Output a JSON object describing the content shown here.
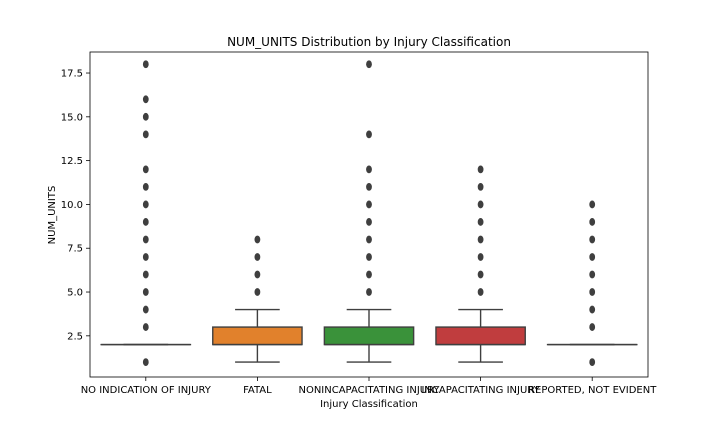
{
  "chart_data": {
    "type": "box",
    "title": "NUM_UNITS Distribution by Injury Classification",
    "xlabel": "Injury Classification",
    "ylabel": "NUM_UNITS",
    "ylim": [
      0.15,
      18.7
    ],
    "yticks": [
      2.5,
      5.0,
      7.5,
      10.0,
      12.5,
      15.0,
      17.5
    ],
    "ytick_labels": [
      "2.5",
      "5.0",
      "7.5",
      "10.0",
      "12.5",
      "15.0",
      "17.5"
    ],
    "grid": false,
    "categories": [
      "NO INDICATION OF INJURY",
      "FATAL",
      "NONINCAPACITATING INJURY",
      "INCAPACITATING INJURY",
      "REPORTED, NOT EVIDENT"
    ],
    "boxes": [
      {
        "category": "NO INDICATION OF INJURY",
        "color": "#3a75b0",
        "whisker_low": 2,
        "q1": 2,
        "median": 2,
        "q3": 2,
        "whisker_high": 2,
        "outliers": [
          1,
          3,
          4,
          5,
          6,
          7,
          8,
          9,
          10,
          11,
          12,
          14,
          15,
          16,
          18
        ]
      },
      {
        "category": "FATAL",
        "color": "#e1812c",
        "whisker_low": 1,
        "q1": 2,
        "median": 2,
        "q3": 3,
        "whisker_high": 4,
        "outliers": [
          5,
          6,
          7,
          8
        ]
      },
      {
        "category": "NONINCAPACITATING INJURY",
        "color": "#3a923a",
        "whisker_low": 1,
        "q1": 2,
        "median": 2,
        "q3": 3,
        "whisker_high": 4,
        "outliers": [
          5,
          6,
          7,
          8,
          9,
          10,
          11,
          12,
          14,
          18
        ]
      },
      {
        "category": "INCAPACITATING INJURY",
        "color": "#c03d3e",
        "whisker_low": 1,
        "q1": 2,
        "median": 2,
        "q3": 3,
        "whisker_high": 4,
        "outliers": [
          5,
          6,
          7,
          8,
          9,
          10,
          11,
          12
        ]
      },
      {
        "category": "REPORTED, NOT EVIDENT",
        "color": "#9372b2",
        "whisker_low": 2,
        "q1": 2,
        "median": 2,
        "q3": 2,
        "whisker_high": 2,
        "outliers": [
          1,
          3,
          4,
          5,
          6,
          7,
          8,
          9,
          10
        ]
      }
    ]
  }
}
